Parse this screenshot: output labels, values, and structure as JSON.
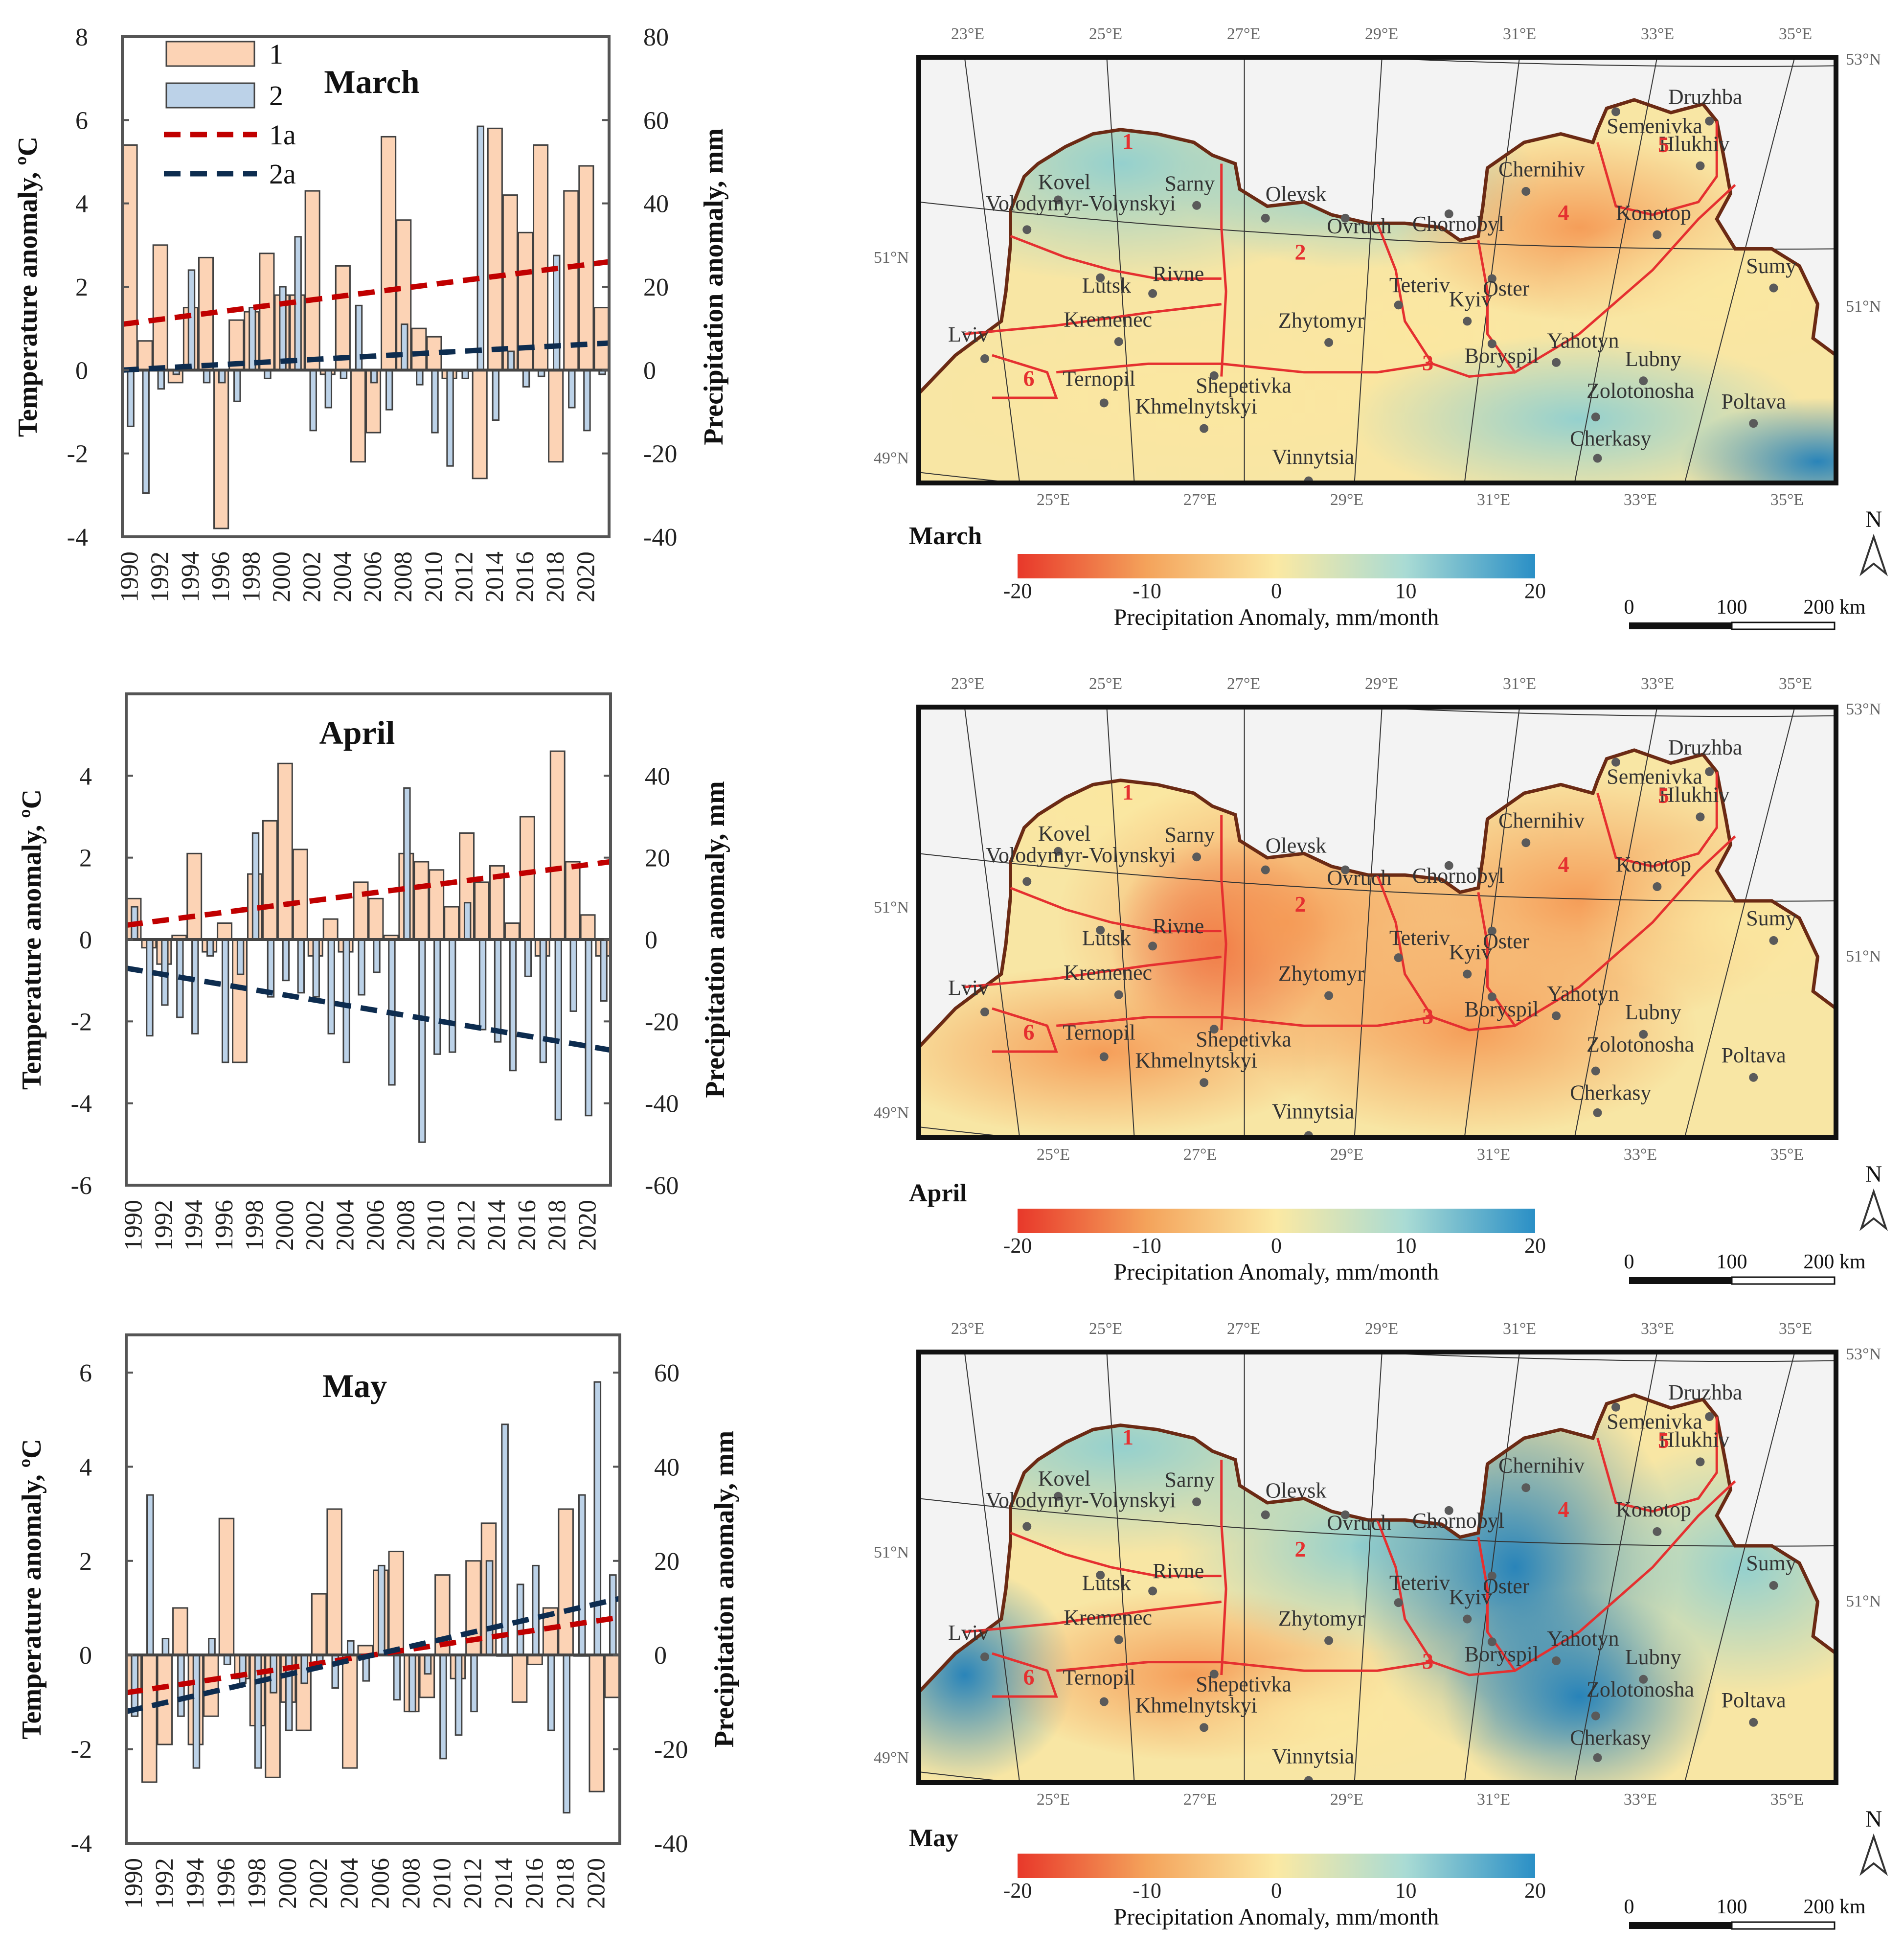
{
  "chart_data": [
    {
      "type": "bar",
      "title": "March",
      "legend": [
        "1",
        "2",
        "1a",
        "2a"
      ],
      "ylabel_left": "Temperature anomaly, ºC",
      "ylabel_right": "Precipitation anomaly, mm",
      "ylim_left": [
        -4,
        8
      ],
      "ylim_right": [
        -40,
        80
      ],
      "yticks_left": [
        "-4",
        "-2",
        "0",
        "2",
        "4",
        "6",
        "8"
      ],
      "yticks_right": [
        "-40",
        "-20",
        "0",
        "20",
        "40",
        "60",
        "80"
      ],
      "x_tick_labels": [
        "1990",
        "1992",
        "1994",
        "1996",
        "1998",
        "2000",
        "2002",
        "2004",
        "2006",
        "2008",
        "2010",
        "2012",
        "2014",
        "2016",
        "2018",
        "2020"
      ],
      "years": [
        1990,
        1991,
        1992,
        1993,
        1994,
        1995,
        1996,
        1997,
        1998,
        1999,
        2000,
        2001,
        2002,
        2003,
        2004,
        2005,
        2006,
        2007,
        2008,
        2009,
        2010,
        2011,
        2012,
        2013,
        2014,
        2015,
        2016,
        2017,
        2018,
        2019,
        2020,
        2021
      ],
      "series": [
        {
          "name": "1",
          "axis": "left",
          "values": [
            5.4,
            0.7,
            3.0,
            -0.3,
            1.5,
            2.7,
            -3.8,
            1.2,
            1.4,
            2.8,
            1.8,
            1.8,
            4.3,
            -0.1,
            2.5,
            -2.2,
            -1.5,
            5.6,
            3.6,
            1.0,
            0.8,
            -0.2,
            0.0,
            -2.6,
            5.8,
            4.2,
            3.3,
            5.4,
            -2.2,
            4.3,
            4.9,
            1.5
          ]
        },
        {
          "name": "2",
          "axis": "right",
          "values": [
            -13.5,
            -29.5,
            -4.5,
            -1,
            24,
            -3,
            -3,
            -7.5,
            15,
            -2,
            20,
            32,
            -14.5,
            -9,
            -2,
            15.5,
            -3,
            -9.5,
            11,
            -3.5,
            -15,
            -23,
            -2,
            58.5,
            -12,
            4.5,
            -4,
            -1.5,
            27.5,
            -9,
            -14.5,
            -1
          ]
        },
        {
          "name": "1a",
          "axis": "left",
          "values": [
            1.1,
            2.6
          ]
        },
        {
          "name": "2a",
          "axis": "right",
          "values": [
            0,
            6.5
          ]
        }
      ]
    },
    {
      "type": "bar",
      "title": "April",
      "ylabel_left": "Temperature anomaly, ºC",
      "ylabel_right": "Precipitation anomaly, mm",
      "ylim_left": [
        -6,
        6
      ],
      "ylim_right": [
        -60,
        60
      ],
      "yticks_left": [
        "-6",
        "-4",
        "-2",
        "0",
        "2",
        "4"
      ],
      "yticks_right": [
        "-60",
        "-40",
        "-20",
        "0",
        "20",
        "40"
      ],
      "x_tick_labels": [
        "1990",
        "1992",
        "1994",
        "1996",
        "1998",
        "2000",
        "2002",
        "2004",
        "2006",
        "2008",
        "2010",
        "2012",
        "2014",
        "2016",
        "2018",
        "2020"
      ],
      "years": [
        1990,
        1991,
        1992,
        1993,
        1994,
        1995,
        1996,
        1997,
        1998,
        1999,
        2000,
        2001,
        2002,
        2003,
        2004,
        2005,
        2006,
        2007,
        2008,
        2009,
        2010,
        2011,
        2012,
        2013,
        2014,
        2015,
        2016,
        2017,
        2018,
        2019,
        2020,
        2021
      ],
      "series": [
        {
          "name": "1",
          "values": [
            1.0,
            -0.2,
            -0.6,
            0.1,
            2.1,
            -0.3,
            0.4,
            -3.0,
            1.6,
            2.9,
            4.3,
            2.2,
            -0.4,
            0.5,
            -0.3,
            1.4,
            1.0,
            0.1,
            2.1,
            1.9,
            1.7,
            0.8,
            2.6,
            1.4,
            1.8,
            0.4,
            3.0,
            -0.4,
            4.6,
            1.9,
            0.6,
            -0.4
          ]
        },
        {
          "name": "2",
          "values": [
            8,
            -23.5,
            -16,
            -19,
            -23,
            -4,
            -30,
            -8.5,
            26,
            -14,
            -10,
            -13,
            -14,
            -23,
            -30,
            -13.5,
            -8,
            -35.5,
            37,
            -49.5,
            -28,
            -27.5,
            9,
            -22,
            -25,
            -32,
            -9,
            -30,
            -44,
            -17.5,
            -43,
            -15
          ]
        },
        {
          "name": "1a",
          "values": [
            0.35,
            1.9
          ]
        },
        {
          "name": "2a",
          "values": [
            -7,
            -27
          ]
        }
      ]
    },
    {
      "type": "bar",
      "title": "May",
      "ylabel_left": "Temperature anomaly, ºC",
      "ylabel_right": "Precipitation anomaly, mm",
      "ylim_left": [
        -4,
        6.8
      ],
      "ylim_right": [
        -40,
        68
      ],
      "yticks_left": [
        "-4",
        "-2",
        "0",
        "2",
        "4",
        "6"
      ],
      "yticks_right": [
        "-40",
        "-20",
        "0",
        "20",
        "40",
        "60"
      ],
      "x_tick_labels": [
        "1990",
        "1992",
        "1994",
        "1996",
        "1998",
        "2000",
        "2002",
        "2004",
        "2006",
        "2008",
        "2010",
        "2012",
        "2014",
        "2016",
        "2018",
        "2020"
      ],
      "years": [
        1990,
        1991,
        1992,
        1993,
        1994,
        1995,
        1996,
        1997,
        1998,
        1999,
        2000,
        2001,
        2002,
        2003,
        2004,
        2005,
        2006,
        2007,
        2008,
        2009,
        2010,
        2011,
        2012,
        2013,
        2014,
        2015,
        2016,
        2017,
        2018,
        2019,
        2020,
        2021
      ],
      "series": [
        {
          "name": "1",
          "values": [
            -0.8,
            -2.7,
            -1.9,
            1.0,
            -1.9,
            -1.3,
            2.9,
            -0.5,
            -1.5,
            -2.6,
            -1.0,
            -1.6,
            1.3,
            3.1,
            -2.4,
            0.2,
            1.8,
            2.2,
            -1.2,
            -0.9,
            1.7,
            -0.5,
            2.0,
            2.8,
            0.0,
            -1.0,
            -0.2,
            1.0,
            3.1,
            0.0,
            -2.9,
            -0.9
          ]
        },
        {
          "name": "2",
          "values": [
            -13,
            34,
            3.5,
            -13,
            -24,
            3.5,
            -2,
            -6,
            -24,
            -8,
            -16,
            -6,
            -2,
            -7,
            3,
            -5.5,
            19,
            -9.5,
            -12,
            -4,
            -22,
            -17,
            -12,
            20,
            49,
            15,
            19,
            -16,
            -33.5,
            34,
            58,
            17
          ]
        },
        {
          "name": "1a",
          "values": [
            -0.8,
            0.8
          ]
        },
        {
          "name": "2a",
          "values": [
            -12,
            12
          ]
        }
      ]
    }
  ],
  "maps": [
    {
      "month": "March"
    },
    {
      "month": "April"
    },
    {
      "month": "May"
    }
  ],
  "map_common": {
    "top_lon_labels": [
      "23°E",
      "25°E",
      "27°E",
      "29°E",
      "31°E",
      "33°E",
      "35°E"
    ],
    "bottom_lon_labels": [
      "25°E",
      "27°E",
      "29°E",
      "31°E",
      "33°E",
      "35°E"
    ],
    "lat_labels": [
      "53°N",
      "51°N",
      "51°N",
      "49°N"
    ],
    "cities": [
      "Kovel",
      "Volodymyr-Volynskyi",
      "Sarny",
      "Olevsk",
      "Ovruch",
      "Chornobyl",
      "Chernihiv",
      "Druzhba",
      "Semenivka",
      "Hlukhiv",
      "Konotop",
      "Sumy",
      "Lutsk",
      "Rivne",
      "Kremenec",
      "Lviv",
      "Ternopil",
      "Khmelnytskyi",
      "Shepetivka",
      "Zhytomyr",
      "Teteriv",
      "Kyiv",
      "Oster",
      "Boryspil",
      "Yahotyn",
      "Lubny",
      "Zolotonosha",
      "Cherkasy",
      "Poltava",
      "Vinnytsia"
    ],
    "regions": [
      "1",
      "2",
      "3",
      "4",
      "5",
      "6"
    ],
    "colorbar_ticks": [
      "-20",
      "-10",
      "0",
      "10",
      "20"
    ],
    "colorbar_title": "Precipitation Anomaly, mm/month",
    "colorbar_colors": [
      "#e8382a",
      "#f4a35b",
      "#fbe9a3",
      "#a9dbd4",
      "#2a8fc6"
    ],
    "north_label": "N",
    "scale_labels": [
      "0",
      "100",
      "200 km"
    ]
  },
  "colors": {
    "temp_bar": "#fcd3b5",
    "precip_bar": "#bcd2e8",
    "temp_trend": "#c00000",
    "precip_trend": "#0d2c4f",
    "border": "#6b2a14",
    "regions": "#e53030"
  }
}
